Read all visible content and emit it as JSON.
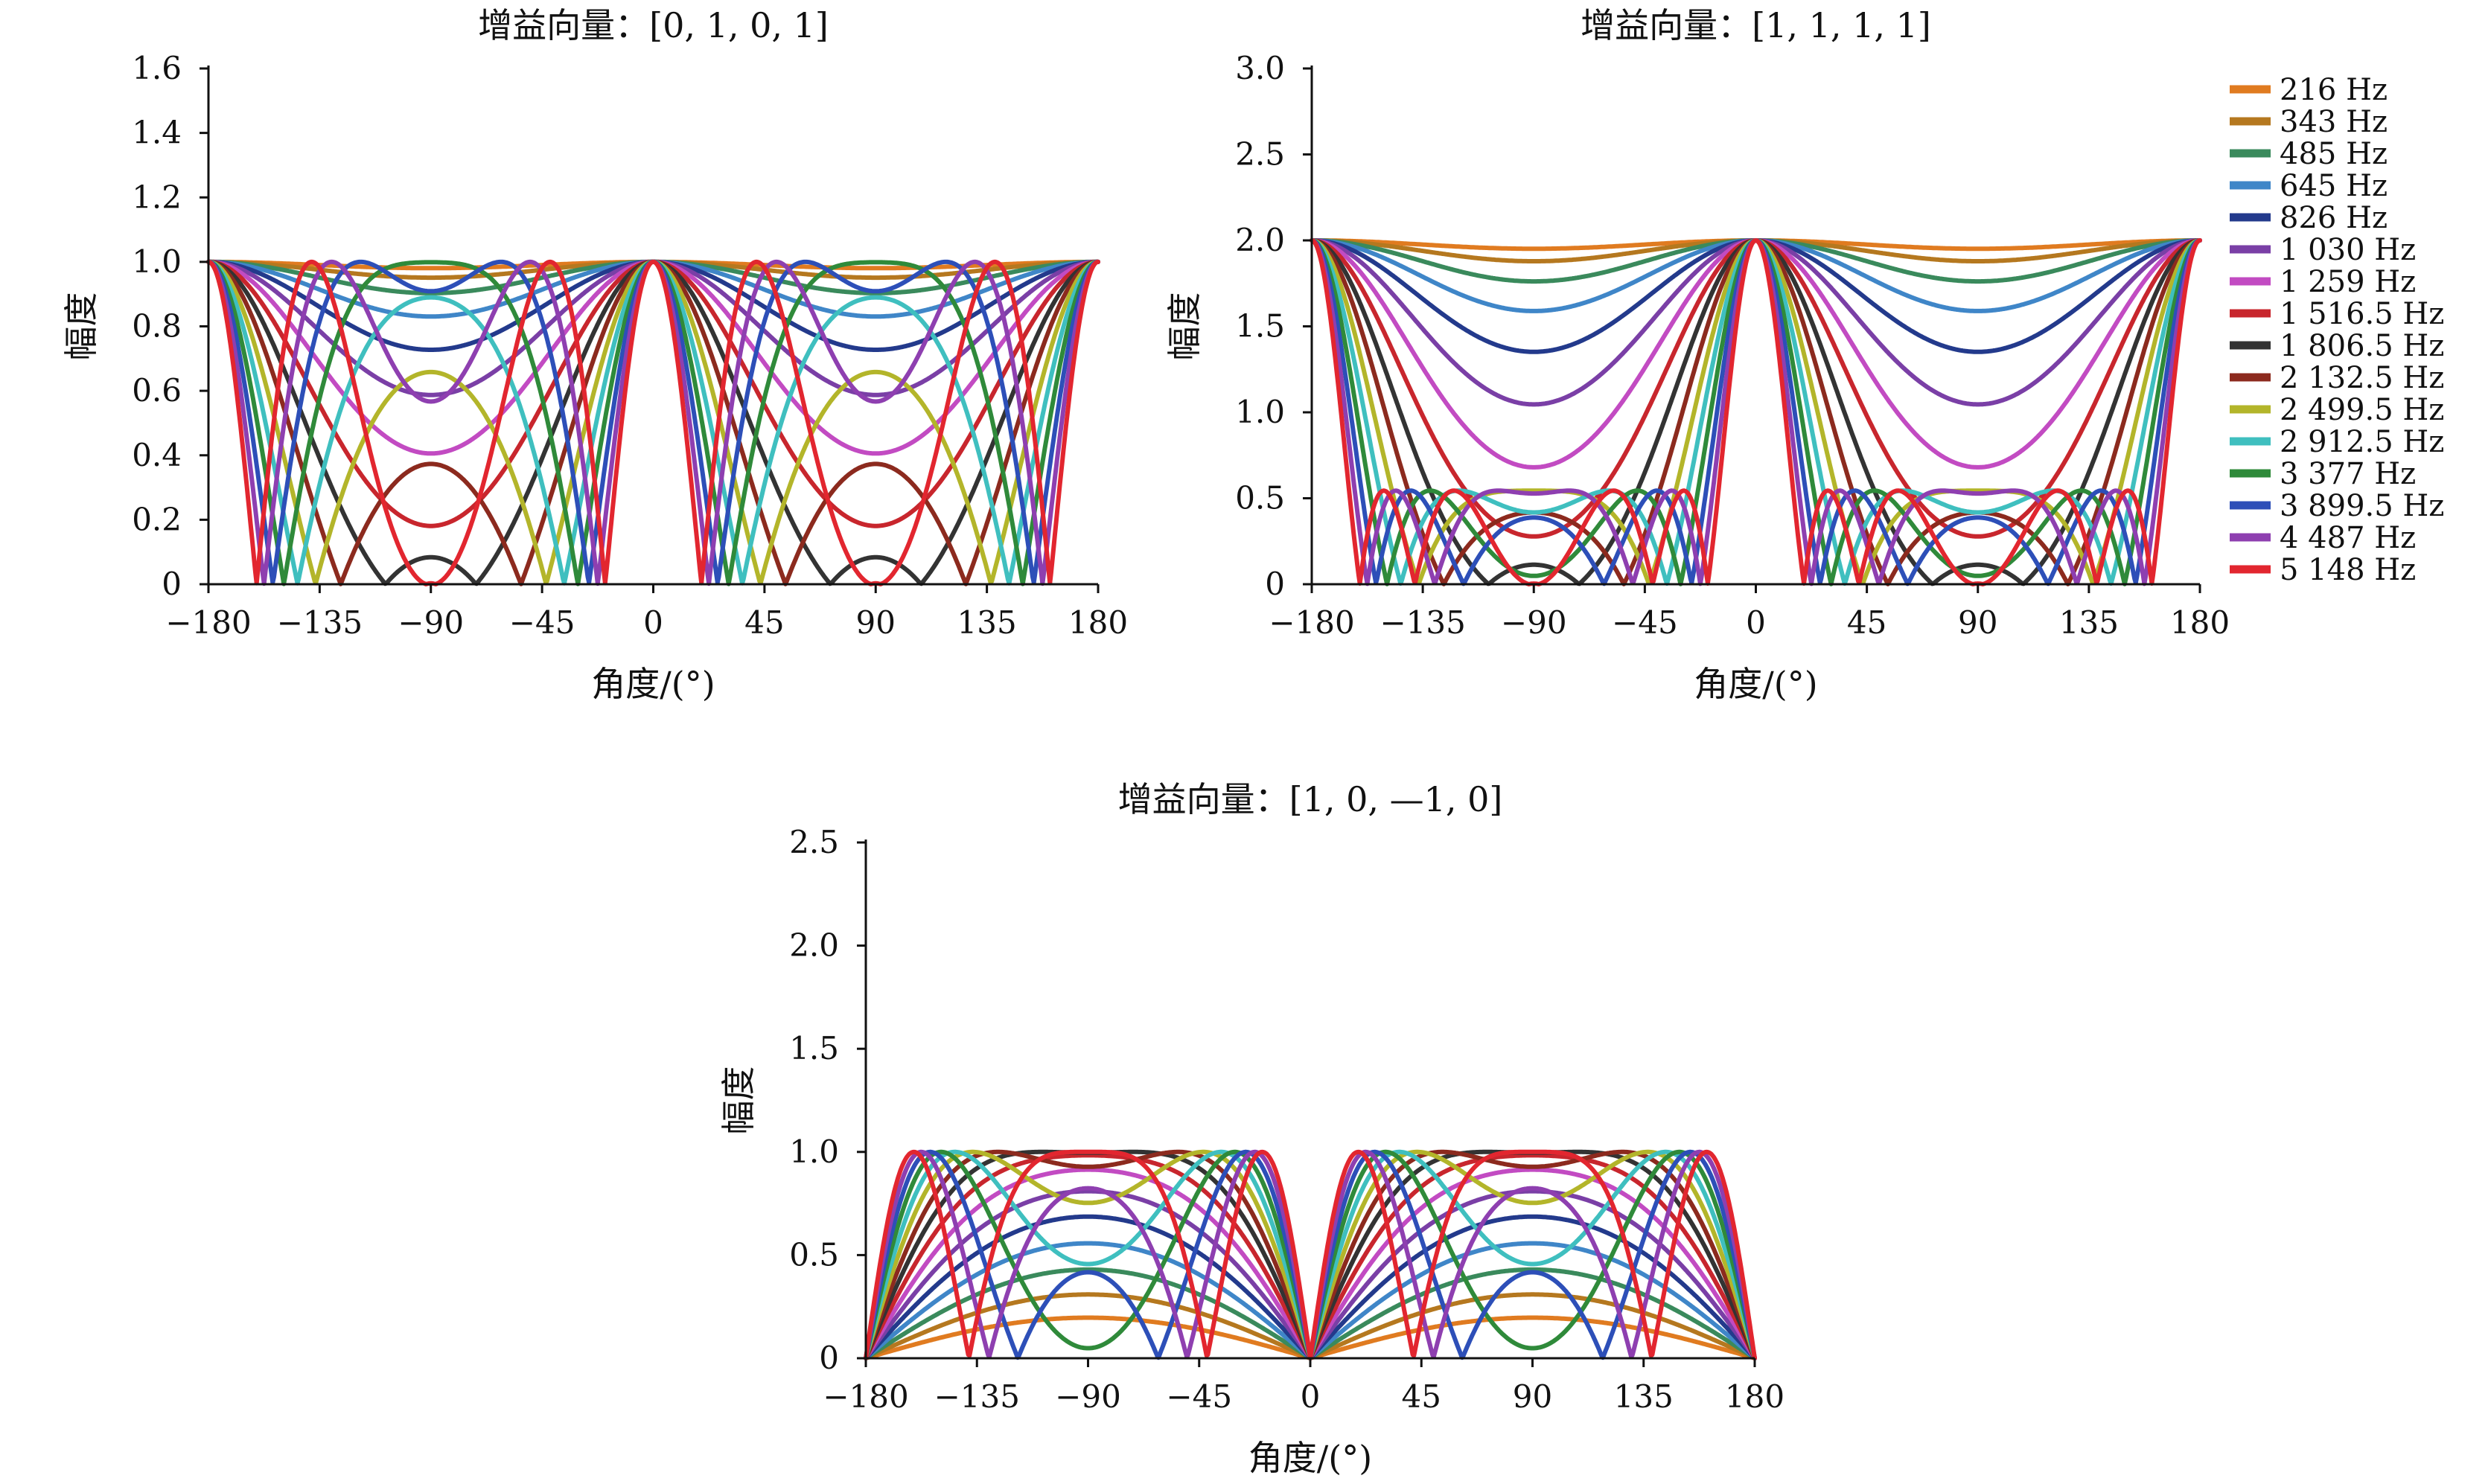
{
  "chart_data": [
    {
      "type": "line",
      "title": "增益向量：[0, 1, 0, 1]",
      "xlabel": "角度/(°)",
      "ylabel": "幅度",
      "xlim": [
        -180,
        180
      ],
      "ylim": [
        0,
        1.6
      ],
      "xticks": [
        "−180",
        "−135",
        "−90",
        "−45",
        "0",
        "45",
        "90",
        "135",
        "180"
      ],
      "yticks": [
        "0",
        "0.2",
        "0.4",
        "0.6",
        "0.8",
        "1.0",
        "1.2",
        "1.4",
        "1.6"
      ],
      "grid": false,
      "gain": [
        0,
        1,
        0,
        1
      ]
    },
    {
      "type": "line",
      "title": "增益向量：[1, 1, 1, 1]",
      "xlabel": "角度/(°)",
      "ylabel": "幅度",
      "xlim": [
        -180,
        180
      ],
      "ylim": [
        0,
        3.0
      ],
      "xticks": [
        "−180",
        "−135",
        "−90",
        "−45",
        "0",
        "45",
        "90",
        "135",
        "180"
      ],
      "yticks": [
        "0",
        "0.5",
        "1.0",
        "1.5",
        "2.0",
        "2.5",
        "3.0"
      ],
      "grid": false,
      "legend_position": "right",
      "gain": [
        1,
        1,
        1,
        1
      ]
    },
    {
      "type": "line",
      "title": "增益向量：[1, 0, —1, 0]",
      "xlabel": "角度/(°)",
      "ylabel": "幅度",
      "xlim": [
        -180,
        180
      ],
      "ylim": [
        0,
        2.5
      ],
      "xticks": [
        "−180",
        "−135",
        "−90",
        "−45",
        "0",
        "45",
        "90",
        "135",
        "180"
      ],
      "yticks": [
        "0",
        "0.5",
        "1.0",
        "1.5",
        "2.0",
        "2.5"
      ],
      "grid": false,
      "gain": [
        1,
        0,
        -1,
        0
      ]
    }
  ],
  "series": [
    {
      "name": "216 Hz",
      "freq": 216,
      "color": "#e07b20"
    },
    {
      "name": "343 Hz",
      "freq": 343,
      "color": "#b5781f"
    },
    {
      "name": "485 Hz",
      "freq": 485,
      "color": "#3a8a5c"
    },
    {
      "name": "645 Hz",
      "freq": 645,
      "color": "#3f86c8"
    },
    {
      "name": "826 Hz",
      "freq": 826,
      "color": "#233a8c"
    },
    {
      "name": "1 030 Hz",
      "freq": 1030,
      "color": "#7a3fa6"
    },
    {
      "name": "1 259 Hz",
      "freq": 1259,
      "color": "#c24bc2"
    },
    {
      "name": "1 516.5 Hz",
      "freq": 1516.5,
      "color": "#c8262d"
    },
    {
      "name": "1 806.5 Hz",
      "freq": 1806.5,
      "color": "#333333"
    },
    {
      "name": "2 132.5 Hz",
      "freq": 2132.5,
      "color": "#8c2a1e"
    },
    {
      "name": "2 499.5 Hz",
      "freq": 2499.5,
      "color": "#b3b52a"
    },
    {
      "name": "2 912.5 Hz",
      "freq": 2912.5,
      "color": "#3fbfbf"
    },
    {
      "name": "3 377 Hz",
      "freq": 3377,
      "color": "#2f8a3a"
    },
    {
      "name": "3 899.5 Hz",
      "freq": 3899.5,
      "color": "#2d4fb8"
    },
    {
      "name": "4 487 Hz",
      "freq": 4487,
      "color": "#8e3fb0"
    },
    {
      "name": "5 148 Hz",
      "freq": 5148,
      "color": "#e2262f"
    }
  ]
}
